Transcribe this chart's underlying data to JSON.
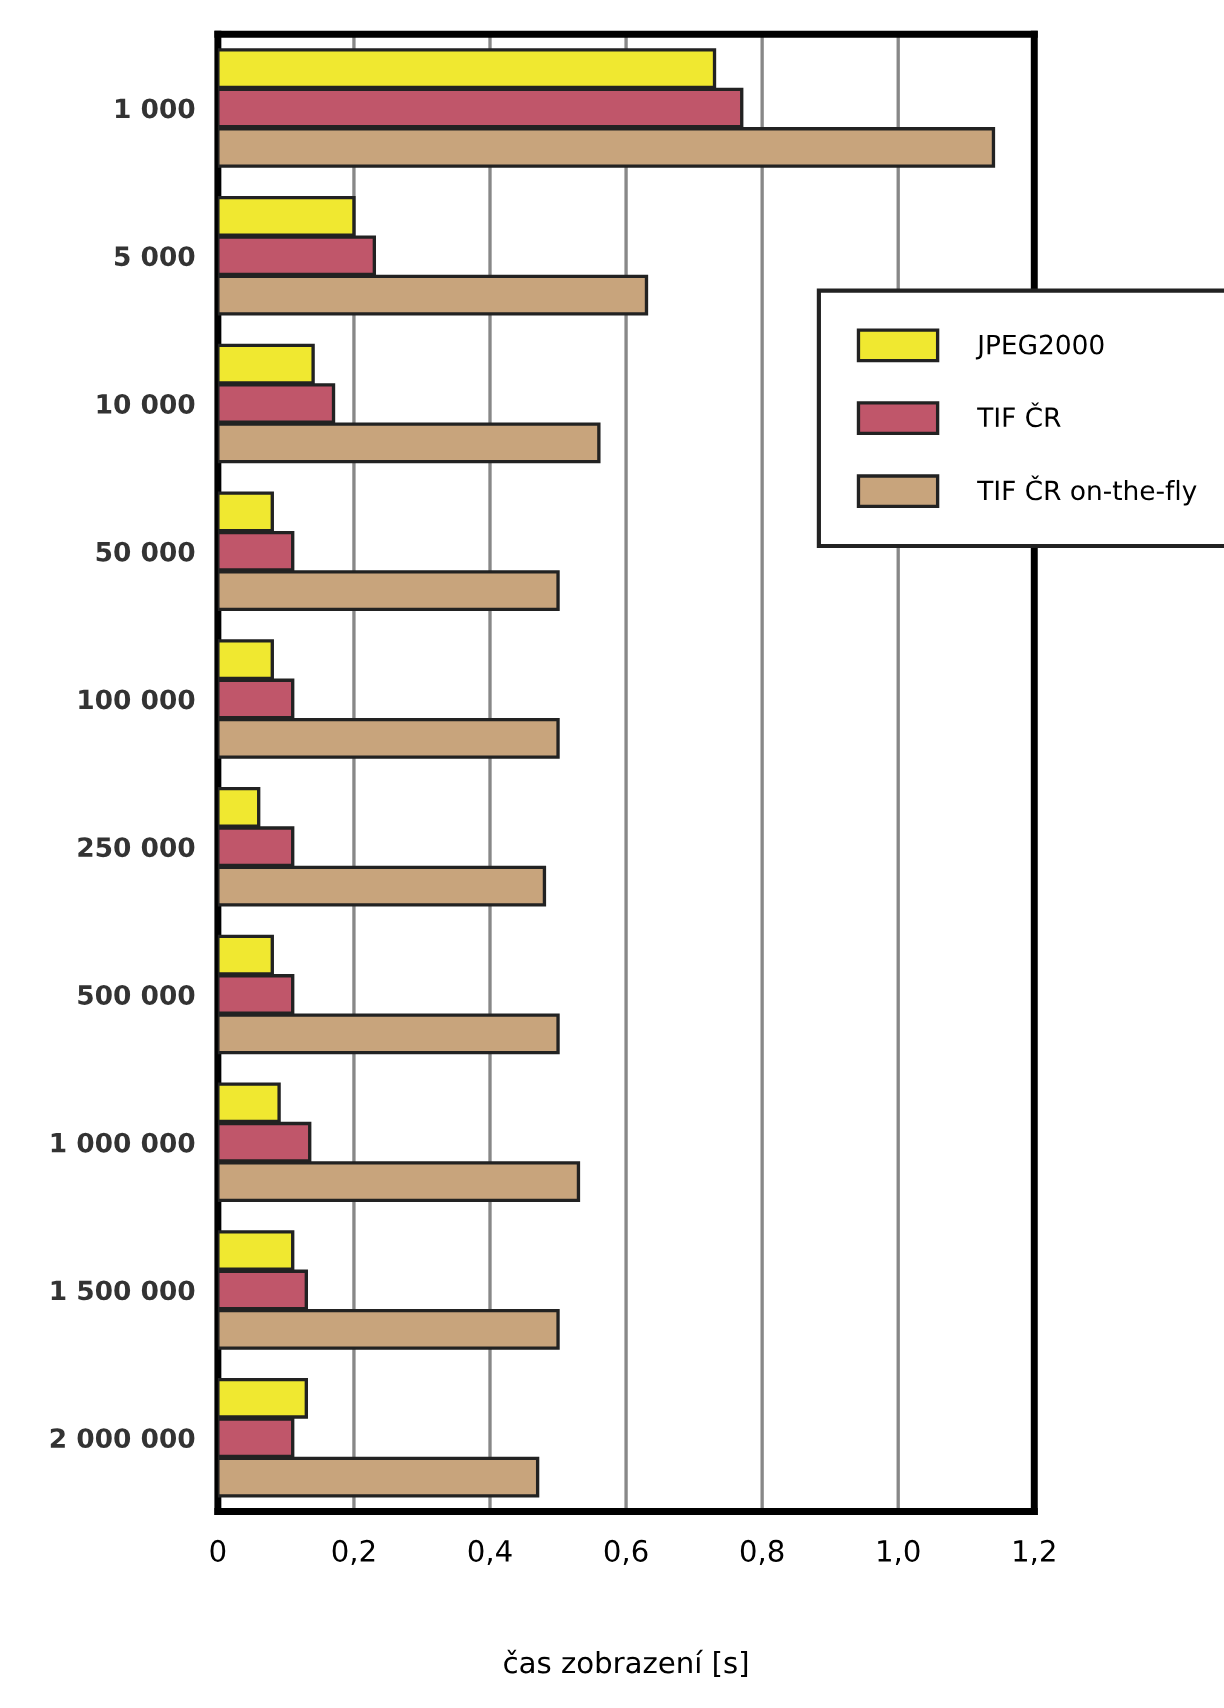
{
  "chart_data": {
    "type": "bar",
    "orientation": "horizontal",
    "xlabel": "čas zobrazení [s]",
    "categories": [
      "1 000",
      "5 000",
      "10 000",
      "50 000",
      "100 000",
      "250 000",
      "500 000",
      "1 000 000",
      "1 500 000",
      "2 000 000"
    ],
    "series": [
      {
        "name": "JPEG2000",
        "color": "#f0e830",
        "values": [
          0.73,
          0.2,
          0.14,
          0.08,
          0.08,
          0.06,
          0.08,
          0.09,
          0.11,
          0.13
        ]
      },
      {
        "name": "TIF ČR",
        "color": "#c0566a",
        "values": [
          0.77,
          0.23,
          0.17,
          0.11,
          0.11,
          0.11,
          0.11,
          0.135,
          0.13,
          0.11
        ]
      },
      {
        "name": "TIF ČR on-the-fly",
        "color": "#c8a47c",
        "values": [
          1.14,
          0.63,
          0.56,
          0.5,
          0.5,
          0.48,
          0.5,
          0.53,
          0.5,
          0.47
        ]
      }
    ],
    "xlim": [
      0,
      1.2
    ],
    "xticks": [
      {
        "value": 0,
        "label": "0"
      },
      {
        "value": 0.2,
        "label": "0,2"
      },
      {
        "value": 0.4,
        "label": "0,4"
      },
      {
        "value": 0.6,
        "label": "0,6"
      },
      {
        "value": 0.8,
        "label": "0,8"
      },
      {
        "value": 1.0,
        "label": "1,0"
      },
      {
        "value": 1.2,
        "label": "1,2"
      }
    ],
    "grid": "x",
    "legend": "right"
  }
}
